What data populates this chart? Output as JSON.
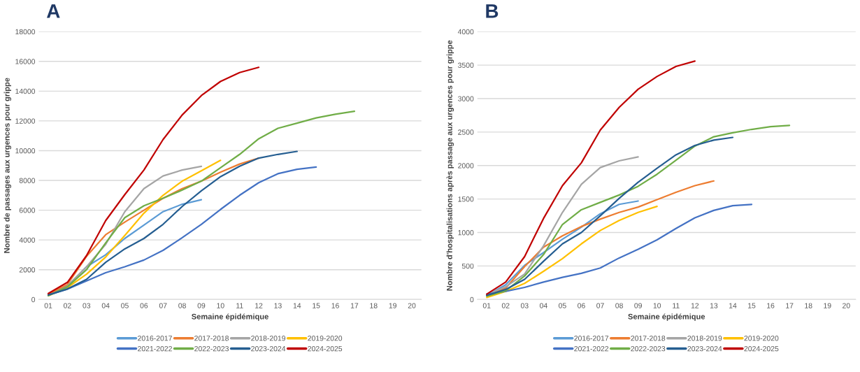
{
  "chart_data": [
    {
      "type": "line",
      "title": "A",
      "xlabel": "Semaine épidémique",
      "ylabel": "Nombre de passages aux urgences pour grippe",
      "categories": [
        "01",
        "02",
        "03",
        "04",
        "05",
        "06",
        "07",
        "08",
        "09",
        "10",
        "11",
        "12",
        "13",
        "14",
        "15",
        "16",
        "17",
        "18",
        "19",
        "20"
      ],
      "ylim": [
        0,
        18000
      ],
      "yticks": [
        0,
        2000,
        4000,
        6000,
        8000,
        10000,
        12000,
        14000,
        16000,
        18000
      ],
      "grid": "y",
      "legend": "bottom",
      "series": [
        {
          "name": "2016-2017",
          "color": "#5b9bd5",
          "values": [
            300,
            900,
            2200,
            3000,
            4100,
            5000,
            5900,
            6400,
            6700,
            null,
            null,
            null,
            null,
            null,
            null,
            null,
            null,
            null,
            null,
            null
          ]
        },
        {
          "name": "2017-2018",
          "color": "#ed7d31",
          "values": [
            350,
            1000,
            2900,
            4350,
            5200,
            6000,
            6800,
            7450,
            7950,
            8550,
            9100,
            9500,
            null,
            null,
            null,
            null,
            null,
            null,
            null,
            null
          ]
        },
        {
          "name": "2018-2019",
          "color": "#a5a5a5",
          "values": [
            null,
            900,
            2200,
            3700,
            5900,
            7450,
            8300,
            8700,
            8950,
            null,
            null,
            null,
            null,
            null,
            null,
            null,
            null,
            null,
            null,
            null
          ]
        },
        {
          "name": "2019-2020",
          "color": "#ffc000",
          "values": [
            250,
            800,
            1700,
            2850,
            4300,
            5800,
            7000,
            7950,
            8650,
            9350,
            null,
            null,
            null,
            null,
            null,
            null,
            null,
            null,
            null,
            null
          ]
        },
        {
          "name": "2021-2022",
          "color": "#4472c4",
          "values": [
            300,
            700,
            1250,
            1800,
            2200,
            2650,
            3300,
            4150,
            5050,
            6050,
            7000,
            7850,
            8450,
            8750,
            8900,
            null,
            null,
            null,
            null,
            null
          ]
        },
        {
          "name": "2022-2023",
          "color": "#70ad47",
          "values": [
            250,
            850,
            2000,
            3800,
            5500,
            6300,
            6800,
            7350,
            7950,
            8850,
            9750,
            10800,
            11500,
            11850,
            12200,
            12450,
            12650,
            null,
            null,
            null
          ]
        },
        {
          "name": "2023-2024",
          "color": "#255e91",
          "values": [
            300,
            700,
            1350,
            2500,
            3400,
            4100,
            5050,
            6250,
            7300,
            8250,
            8950,
            9500,
            9750,
            9950,
            null,
            null,
            null,
            null,
            null,
            null
          ]
        },
        {
          "name": "2024-2025",
          "color": "#c00000",
          "values": [
            400,
            1150,
            2950,
            5300,
            7050,
            8700,
            10750,
            12400,
            13700,
            14650,
            15250,
            15600,
            null,
            null,
            null,
            null,
            null,
            null,
            null,
            null
          ]
        }
      ]
    },
    {
      "type": "line",
      "title": "B",
      "xlabel": "Semaine épidémique",
      "ylabel": "Nombre d'hospitalisations après passage aux urgences pour grippe",
      "categories": [
        "01",
        "02",
        "03",
        "04",
        "05",
        "06",
        "07",
        "08",
        "09",
        "10",
        "11",
        "12",
        "13",
        "14",
        "15",
        "16",
        "17",
        "18",
        "19",
        "20"
      ],
      "ylim": [
        0,
        4000
      ],
      "yticks": [
        0,
        500,
        1000,
        1500,
        2000,
        2500,
        3000,
        3500,
        4000
      ],
      "grid": "y",
      "legend": "bottom",
      "series": [
        {
          "name": "2016-2017",
          "color": "#5b9bd5",
          "values": [
            60,
            220,
            510,
            700,
            900,
            1080,
            1280,
            1420,
            1470,
            null,
            null,
            null,
            null,
            null,
            null,
            null,
            null,
            null,
            null,
            null
          ]
        },
        {
          "name": "2017-2018",
          "color": "#ed7d31",
          "values": [
            60,
            170,
            490,
            780,
            950,
            1090,
            1200,
            1300,
            1380,
            1490,
            1600,
            1700,
            1770,
            null,
            null,
            null,
            null,
            null,
            null,
            null
          ]
        },
        {
          "name": "2018-2019",
          "color": "#a5a5a5",
          "values": [
            70,
            190,
            380,
            800,
            1300,
            1720,
            1970,
            2070,
            2130,
            null,
            null,
            null,
            null,
            null,
            null,
            null,
            null,
            null,
            null,
            null
          ]
        },
        {
          "name": "2019-2020",
          "color": "#ffc000",
          "values": [
            30,
            120,
            240,
            420,
            610,
            830,
            1030,
            1180,
            1300,
            1390,
            null,
            null,
            null,
            null,
            null,
            null,
            null,
            null,
            null,
            null
          ]
        },
        {
          "name": "2021-2022",
          "color": "#4472c4",
          "values": [
            80,
            120,
            180,
            260,
            330,
            390,
            470,
            620,
            750,
            890,
            1060,
            1220,
            1330,
            1400,
            1420,
            null,
            null,
            null,
            null,
            null
          ]
        },
        {
          "name": "2022-2023",
          "color": "#70ad47",
          "values": [
            50,
            130,
            350,
            670,
            1120,
            1340,
            1450,
            1560,
            1690,
            1870,
            2080,
            2290,
            2430,
            2490,
            2540,
            2580,
            2600,
            null,
            null,
            null
          ]
        },
        {
          "name": "2023-2024",
          "color": "#255e91",
          "values": [
            60,
            150,
            300,
            570,
            830,
            1000,
            1250,
            1510,
            1750,
            1960,
            2160,
            2300,
            2380,
            2420,
            null,
            null,
            null,
            null,
            null,
            null
          ]
        },
        {
          "name": "2024-2025",
          "color": "#c00000",
          "values": [
            80,
            260,
            640,
            1210,
            1700,
            2040,
            2530,
            2870,
            3140,
            3330,
            3480,
            3560,
            null,
            null,
            null,
            null,
            null,
            null,
            null,
            null
          ]
        }
      ]
    }
  ]
}
